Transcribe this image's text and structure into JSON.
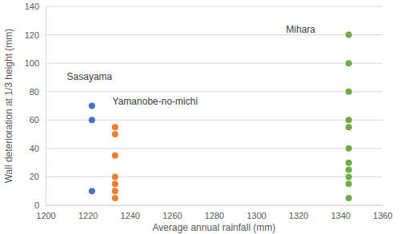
{
  "chart_data": {
    "type": "scatter",
    "x_label": "Average annual rainfall (mm)",
    "y_label": "Wall deterioration at 1/3 height (mm)",
    "xlim": [
      1200,
      1360
    ],
    "xticks": [
      1200,
      1220,
      1240,
      1260,
      1280,
      1300,
      1320,
      1340,
      1360
    ],
    "ylim": [
      0,
      140
    ],
    "yticks": [
      0,
      20,
      40,
      60,
      80,
      100,
      120,
      140
    ],
    "grid": true,
    "series": [
      {
        "name": "Sasayama",
        "color": "#4472c4",
        "marker": "circle",
        "x": [
          1222,
          1222,
          1222
        ],
        "values": [
          70,
          60,
          10
        ]
      },
      {
        "name": "Yamanobe-no-michi",
        "color": "#ed7d31",
        "marker": "circle",
        "x": [
          1233,
          1233,
          1233,
          1233,
          1233,
          1233,
          1233
        ],
        "values": [
          55,
          50,
          35,
          20,
          15,
          10,
          5
        ]
      },
      {
        "name": "Mihara",
        "color": "#70ad47",
        "marker": "circle",
        "x": [
          1344,
          1344,
          1344,
          1344,
          1344,
          1344,
          1344,
          1344,
          1344,
          1344,
          1344
        ],
        "values": [
          120,
          100,
          80,
          60,
          55,
          40,
          30,
          25,
          20,
          15,
          5
        ]
      }
    ]
  }
}
